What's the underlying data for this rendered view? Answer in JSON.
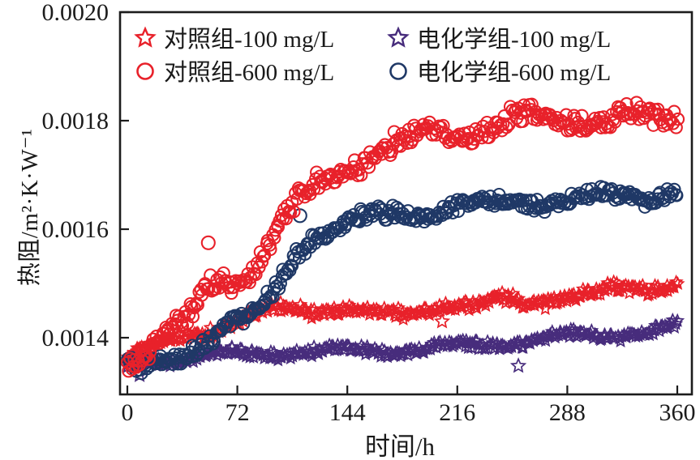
{
  "accent_colors": {
    "red": "#e8212a",
    "navy": "#1f3866",
    "purple": "#472c7c",
    "axis": "#1c1c1c"
  },
  "chart_data": {
    "type": "scatter",
    "title": "",
    "xlabel": "时间/h",
    "ylabel": "热阻/m²·K·W⁻¹",
    "xlim": [
      -5,
      368
    ],
    "ylim": [
      0.0013,
      0.002
    ],
    "xticks": [
      0,
      72,
      144,
      216,
      288,
      360
    ],
    "yticks": [
      "0.0014",
      "0.0016",
      "0.0018",
      "0.0020"
    ],
    "grid": false,
    "legend_position": "top-inside",
    "sample_interval_h": 1,
    "series": [
      {
        "name": "对照组-100 mg/L",
        "marker": "star",
        "color": "#e8212a",
        "noise": 1.05e-05,
        "anchors": [
          [
            0,
            0.00136
          ],
          [
            12,
            0.001374
          ],
          [
            24,
            0.001386
          ],
          [
            36,
            0.001399
          ],
          [
            48,
            0.001408
          ],
          [
            60,
            0.001414
          ],
          [
            72,
            0.001424
          ],
          [
            84,
            0.001436
          ],
          [
            96,
            0.001444
          ],
          [
            110,
            0.00145
          ],
          [
            125,
            0.001449
          ],
          [
            140,
            0.001454
          ],
          [
            155,
            0.001449
          ],
          [
            170,
            0.001444
          ],
          [
            185,
            0.001446
          ],
          [
            200,
            0.001463
          ],
          [
            215,
            0.001469
          ],
          [
            230,
            0.001464
          ],
          [
            245,
            0.001474
          ],
          [
            260,
            0.001469
          ],
          [
            275,
            0.001474
          ],
          [
            290,
            0.001479
          ],
          [
            305,
            0.001479
          ],
          [
            320,
            0.001484
          ],
          [
            335,
            0.001486
          ],
          [
            350,
            0.001491
          ],
          [
            360,
            0.001497
          ]
        ],
        "outliers": [
          [
            206,
            0.00143
          ]
        ]
      },
      {
        "name": "电化学组-100 mg/L",
        "marker": "star",
        "color": "#472c7c",
        "noise": 8.5e-06,
        "anchors": [
          [
            0,
            0.00134
          ],
          [
            10,
            0.001349
          ],
          [
            20,
            0.001354
          ],
          [
            35,
            0.001358
          ],
          [
            50,
            0.001362
          ],
          [
            72,
            0.001367
          ],
          [
            95,
            0.001371
          ],
          [
            120,
            0.001376
          ],
          [
            145,
            0.001379
          ],
          [
            170,
            0.001381
          ],
          [
            195,
            0.001384
          ],
          [
            220,
            0.001387
          ],
          [
            245,
            0.001389
          ],
          [
            270,
            0.001394
          ],
          [
            295,
            0.001399
          ],
          [
            320,
            0.001403
          ],
          [
            340,
            0.001408
          ],
          [
            360,
            0.001416
          ]
        ],
        "outliers": [
          [
            256,
            0.001348
          ],
          [
            8,
            0.001331
          ]
        ]
      },
      {
        "name": "对照组-600 mg/L",
        "marker": "circle",
        "color": "#e8212a",
        "noise": 1.95e-05,
        "anchors": [
          [
            0,
            0.00135
          ],
          [
            6,
            0.00136
          ],
          [
            12,
            0.001368
          ],
          [
            18,
            0.001382
          ],
          [
            24,
            0.001395
          ],
          [
            30,
            0.001405
          ],
          [
            36,
            0.001418
          ],
          [
            42,
            0.001438
          ],
          [
            48,
            0.001468
          ],
          [
            52,
            0.001492
          ],
          [
            58,
            0.001505
          ],
          [
            64,
            0.001512
          ],
          [
            70,
            0.001515
          ],
          [
            76,
            0.001522
          ],
          [
            82,
            0.001535
          ],
          [
            88,
            0.001565
          ],
          [
            94,
            0.00159
          ],
          [
            100,
            0.001615
          ],
          [
            106,
            0.001635
          ],
          [
            112,
            0.001655
          ],
          [
            118,
            0.00167
          ],
          [
            124,
            0.00169
          ],
          [
            130,
            0.001705
          ],
          [
            136,
            0.001715
          ],
          [
            142,
            0.001725
          ],
          [
            150,
            0.001735
          ],
          [
            158,
            0.001745
          ],
          [
            166,
            0.00175
          ],
          [
            175,
            0.001755
          ],
          [
            185,
            0.001765
          ],
          [
            195,
            0.00177
          ],
          [
            205,
            0.001775
          ],
          [
            216,
            0.001775
          ],
          [
            228,
            0.00178
          ],
          [
            240,
            0.00178
          ],
          [
            252,
            0.00179
          ],
          [
            264,
            0.001795
          ],
          [
            276,
            0.00179
          ],
          [
            288,
            0.001795
          ],
          [
            300,
            0.0018
          ],
          [
            312,
            0.001795
          ],
          [
            324,
            0.0018
          ],
          [
            336,
            0.001805
          ],
          [
            348,
            0.0018
          ],
          [
            360,
            0.00181
          ]
        ],
        "outliers": [
          [
            53,
            0.001575
          ]
        ]
      },
      {
        "name": "电化学组-600 mg/L",
        "marker": "circle",
        "color": "#1f3866",
        "noise": 1.35e-05,
        "anchors": [
          [
            0,
            0.00135
          ],
          [
            6,
            0.001338
          ],
          [
            12,
            0.00134
          ],
          [
            20,
            0.001355
          ],
          [
            28,
            0.001365
          ],
          [
            36,
            0.001375
          ],
          [
            44,
            0.00139
          ],
          [
            52,
            0.001405
          ],
          [
            58,
            0.00142
          ],
          [
            64,
            0.001435
          ],
          [
            70,
            0.00144
          ],
          [
            76,
            0.001432
          ],
          [
            82,
            0.001445
          ],
          [
            88,
            0.00146
          ],
          [
            94,
            0.00148
          ],
          [
            100,
            0.00151
          ],
          [
            106,
            0.00154
          ],
          [
            112,
            0.001565
          ],
          [
            118,
            0.001585
          ],
          [
            124,
            0.001598
          ],
          [
            130,
            0.0016
          ],
          [
            138,
            0.001605
          ],
          [
            146,
            0.00161
          ],
          [
            155,
            0.001615
          ],
          [
            165,
            0.001618
          ],
          [
            175,
            0.001622
          ],
          [
            185,
            0.001625
          ],
          [
            195,
            0.001628
          ],
          [
            205,
            0.00163
          ],
          [
            216,
            0.001632
          ],
          [
            228,
            0.001635
          ],
          [
            240,
            0.001638
          ],
          [
            252,
            0.001645
          ],
          [
            264,
            0.001648
          ],
          [
            276,
            0.00165
          ],
          [
            288,
            0.001655
          ],
          [
            300,
            0.001655
          ],
          [
            312,
            0.00166
          ],
          [
            324,
            0.001665
          ],
          [
            336,
            0.001668
          ],
          [
            348,
            0.001672
          ],
          [
            360,
            0.00168
          ]
        ],
        "outliers": [
          [
            113,
            0.001625
          ]
        ]
      }
    ]
  },
  "legend": {
    "items": [
      {
        "label": "对照组-100 mg/L",
        "marker": "star-icon",
        "color": "#e8212a"
      },
      {
        "label": "电化学组-100 mg/L",
        "marker": "star-icon",
        "color": "#472c7c"
      },
      {
        "label": "对照组-600 mg/L",
        "marker": "circle-icon",
        "color": "#e8212a"
      },
      {
        "label": "电化学组-600 mg/L",
        "marker": "circle-icon",
        "color": "#1f3866"
      }
    ]
  }
}
